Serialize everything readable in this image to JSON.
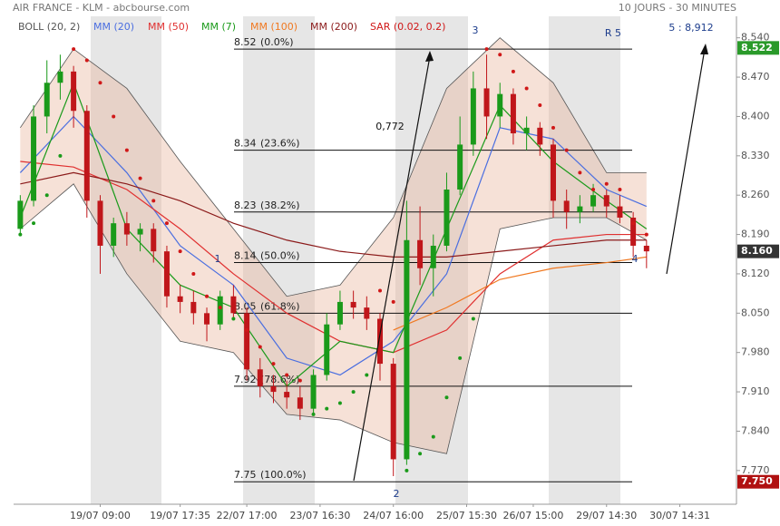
{
  "chart_data": {
    "type": "candlestick",
    "title": "AIR FRANCE - KLM - abcbourse.com",
    "subtitle": "10 JOURS - 30 MINUTES",
    "xlim": [
      -0.5,
      53.75
    ],
    "ylim": [
      7.71,
      8.575
    ],
    "xticks": [
      {
        "value": 6,
        "label": "19/07 09:00"
      },
      {
        "value": 12,
        "label": "19/07 17:35"
      },
      {
        "value": 17,
        "label": "22/07 17:00"
      },
      {
        "value": 22.5,
        "label": "23/07 16:30"
      },
      {
        "value": 28,
        "label": "24/07 16:00"
      },
      {
        "value": 33.5,
        "label": "25/07 15:30"
      },
      {
        "value": 38.5,
        "label": "26/07 15:00"
      },
      {
        "value": 44,
        "label": "29/07 14:30"
      },
      {
        "value": 49.5,
        "label": "30/07 14:31"
      }
    ],
    "yticks": [
      {
        "value": 8.54,
        "label": "8.540"
      },
      {
        "value": 8.47,
        "label": "8.470"
      },
      {
        "value": 8.4,
        "label": "8.400"
      },
      {
        "value": 8.33,
        "label": "8.330"
      },
      {
        "value": 8.26,
        "label": "8.260"
      },
      {
        "value": 8.19,
        "label": "8.190"
      },
      {
        "value": 8.12,
        "label": "8.120"
      },
      {
        "value": 8.05,
        "label": "8.050"
      },
      {
        "value": 7.98,
        "label": "7.980"
      },
      {
        "value": 7.91,
        "label": "7.910"
      },
      {
        "value": 7.84,
        "label": "7.840"
      },
      {
        "value": 7.77,
        "label": "7.770"
      }
    ],
    "up_color": "#1a9a1a",
    "down_color": "#c0161a",
    "ohlc": [
      [
        8.2,
        8.26,
        8.19,
        8.25
      ],
      [
        8.25,
        8.42,
        8.24,
        8.4
      ],
      [
        8.4,
        8.5,
        8.37,
        8.46
      ],
      [
        8.46,
        8.51,
        8.43,
        8.48
      ],
      [
        8.48,
        8.49,
        8.38,
        8.41
      ],
      [
        8.41,
        8.42,
        8.22,
        8.25
      ],
      [
        8.25,
        8.26,
        8.12,
        8.17
      ],
      [
        8.17,
        8.22,
        8.15,
        8.21
      ],
      [
        8.21,
        8.23,
        8.17,
        8.19
      ],
      [
        8.19,
        8.21,
        8.16,
        8.2
      ],
      [
        8.2,
        8.21,
        8.14,
        8.16
      ],
      [
        8.16,
        8.17,
        8.06,
        8.08
      ],
      [
        8.08,
        8.1,
        8.05,
        8.07
      ],
      [
        8.07,
        8.09,
        8.03,
        8.05
      ],
      [
        8.05,
        8.06,
        8.0,
        8.03
      ],
      [
        8.03,
        8.09,
        8.02,
        8.08
      ],
      [
        8.08,
        8.1,
        8.04,
        8.05
      ],
      [
        8.05,
        8.06,
        7.93,
        7.95
      ],
      [
        7.95,
        7.97,
        7.9,
        7.92
      ],
      [
        7.92,
        7.94,
        7.89,
        7.91
      ],
      [
        7.91,
        7.93,
        7.88,
        7.9
      ],
      [
        7.9,
        7.92,
        7.86,
        7.88
      ],
      [
        7.88,
        7.95,
        7.87,
        7.94
      ],
      [
        7.94,
        8.05,
        7.93,
        8.03
      ],
      [
        8.03,
        8.09,
        8.02,
        8.07
      ],
      [
        8.07,
        8.09,
        8.04,
        8.06
      ],
      [
        8.06,
        8.08,
        8.02,
        8.04
      ],
      [
        8.04,
        8.05,
        7.93,
        7.96
      ],
      [
        7.96,
        7.97,
        7.76,
        7.79
      ],
      [
        7.79,
        8.25,
        7.78,
        8.18
      ],
      [
        8.18,
        8.24,
        8.1,
        8.13
      ],
      [
        8.13,
        8.19,
        8.08,
        8.17
      ],
      [
        8.17,
        8.3,
        8.16,
        8.27
      ],
      [
        8.27,
        8.4,
        8.26,
        8.35
      ],
      [
        8.35,
        8.48,
        8.33,
        8.45
      ],
      [
        8.45,
        8.51,
        8.36,
        8.4
      ],
      [
        8.4,
        8.46,
        8.38,
        8.44
      ],
      [
        8.44,
        8.45,
        8.35,
        8.37
      ],
      [
        8.37,
        8.4,
        8.34,
        8.38
      ],
      [
        8.38,
        8.39,
        8.33,
        8.35
      ],
      [
        8.35,
        8.36,
        8.22,
        8.25
      ],
      [
        8.25,
        8.27,
        8.2,
        8.23
      ],
      [
        8.23,
        8.26,
        8.21,
        8.24
      ],
      [
        8.24,
        8.28,
        8.23,
        8.26
      ],
      [
        8.26,
        8.27,
        8.22,
        8.24
      ],
      [
        8.24,
        8.26,
        8.21,
        8.22
      ],
      [
        8.22,
        8.23,
        8.15,
        8.17
      ],
      [
        8.17,
        8.18,
        8.13,
        8.16
      ]
    ],
    "indicator_x": [
      0,
      4,
      8,
      12,
      16,
      20,
      24,
      28,
      32,
      36,
      40,
      44,
      47
    ],
    "bollinger": {
      "name": "BOLL (20, 2)",
      "color": "#555555",
      "fill": "#e8b49c",
      "upper": [
        8.38,
        8.52,
        8.45,
        8.32,
        8.2,
        8.08,
        8.1,
        8.22,
        8.45,
        8.54,
        8.46,
        8.3,
        8.3
      ],
      "lower": [
        8.2,
        8.28,
        8.12,
        8.0,
        7.98,
        7.87,
        7.86,
        7.82,
        7.8,
        8.2,
        8.22,
        8.22,
        8.18
      ]
    },
    "series": [
      {
        "name": "MM (20)",
        "color": "#4a6ee0",
        "values": [
          8.3,
          8.4,
          8.3,
          8.17,
          8.1,
          7.97,
          7.94,
          8.0,
          8.12,
          8.38,
          8.36,
          8.27,
          8.24
        ]
      },
      {
        "name": "MM (50)",
        "color": "#e03030",
        "values": [
          8.32,
          8.31,
          8.27,
          8.2,
          8.12,
          8.05,
          8.0,
          7.98,
          8.02,
          8.12,
          8.18,
          8.19,
          8.19
        ]
      },
      {
        "name": "MM (7)",
        "color": "#1a9a1a",
        "values": [
          8.22,
          8.46,
          8.2,
          8.1,
          8.06,
          7.92,
          8.0,
          7.98,
          8.2,
          8.42,
          8.32,
          8.25,
          8.2
        ]
      },
      {
        "name": "MM (100)",
        "color": "#f07820",
        "values": [
          null,
          null,
          null,
          null,
          null,
          null,
          null,
          8.02,
          8.06,
          8.11,
          8.13,
          8.14,
          8.15
        ]
      },
      {
        "name": "MM (200)",
        "color": "#8b1a1a",
        "values": [
          8.28,
          8.3,
          8.28,
          8.25,
          8.21,
          8.18,
          8.16,
          8.15,
          8.15,
          8.16,
          8.17,
          8.18,
          8.18
        ]
      }
    ],
    "sar": {
      "name": "SAR (0.02, 0.2)",
      "color": "#d01818",
      "below_color": "#1a9a1a",
      "values": [
        8.19,
        8.21,
        8.26,
        8.33,
        8.52,
        8.5,
        8.46,
        8.4,
        8.34,
        8.29,
        8.25,
        8.21,
        8.16,
        8.12,
        8.08,
        8.06,
        8.04,
        8.02,
        7.99,
        7.96,
        7.94,
        7.93,
        7.87,
        7.88,
        7.89,
        7.91,
        7.94,
        8.09,
        8.07,
        7.77,
        7.8,
        7.83,
        7.9,
        7.97,
        8.04,
        8.52,
        8.51,
        8.48,
        8.45,
        8.42,
        8.38,
        8.34,
        8.3,
        8.27,
        8.28,
        8.27,
        8.21,
        8.19
      ]
    },
    "fibonacci": [
      {
        "price": 8.52,
        "ratio": "(0.0%)"
      },
      {
        "price": 8.34,
        "ratio": "(23.6%)"
      },
      {
        "price": 8.23,
        "ratio": "(38.2%)"
      },
      {
        "price": 8.14,
        "ratio": "(50.0%)"
      },
      {
        "price": 8.05,
        "ratio": "(61.8%)"
      },
      {
        "price": 7.92,
        "ratio": "(78.6%)"
      },
      {
        "price": 7.75,
        "ratio": "(100.0%)"
      }
    ],
    "price_tags": [
      {
        "value": 8.522,
        "label": "8.522",
        "color": "#2a9a2a"
      },
      {
        "value": 8.16,
        "label": "8.160",
        "color": "#333333"
      },
      {
        "value": 7.75,
        "label": "7.750",
        "color": "#b01010"
      }
    ],
    "annotations": [
      "1",
      "2",
      "3",
      "4",
      "R 5",
      "5 : 8,912",
      "0,772"
    ]
  }
}
